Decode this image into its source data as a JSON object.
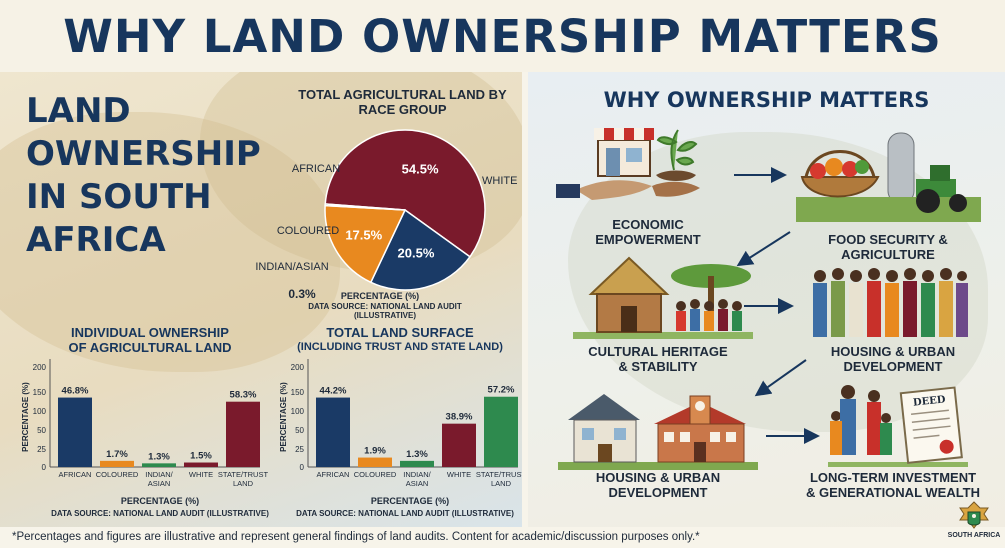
{
  "title": "WHY LAND OWNERSHIP MATTERS",
  "left_title": [
    "LAND",
    "OWNERSHIP",
    "IN SOUTH",
    "AFRICA"
  ],
  "pie": {
    "title": "TOTAL AGRICULTURAL LAND BY RACE GROUP",
    "xlabel": "PERCENTAGE (%)",
    "source": "DATA SOURCE: NATIONAL LAND AUDIT (ILLUSTRATIVE)",
    "slice_labels": [
      "WHITE",
      "AFRICAN",
      "COLOURED",
      "INDIAN/ASIAN"
    ],
    "value_labels": [
      "54.5%",
      "20.5%",
      "17.5%",
      "0.3%"
    ]
  },
  "chart_data": [
    {
      "type": "pie",
      "title": "TOTAL AGRICULTURAL LAND BY RACE GROUP",
      "categories": [
        "White",
        "African",
        "Coloured",
        "Indian/Asian"
      ],
      "values": [
        54.5,
        20.5,
        17.5,
        0.3
      ],
      "colors": [
        "#7a1a2c",
        "#1a3a66",
        "#e8891f",
        "#2e8a4e"
      ],
      "xlabel": "PERCENTAGE (%)"
    },
    {
      "type": "bar",
      "title": "INDIVIDUAL OWNERSHIP OF AGRICULTURAL LAND",
      "categories": [
        "AFRICAN",
        "COLOURED",
        "INDIAN/ ASIAN",
        "WHITE",
        "STATE/TRUST LAND"
      ],
      "values": [
        46.8,
        1.7,
        1.3,
        1.5,
        58.3
      ],
      "bar_heights": [
        168,
        10,
        4,
        6,
        158
      ],
      "value_labels": [
        "46.8%",
        "1.7%",
        "1.3%",
        "1.5%",
        "58.3%"
      ],
      "colors": [
        "#1a3a66",
        "#e8891f",
        "#2e8a4e",
        "#7a1a2c",
        "#7a1a2c"
      ],
      "ylabel": "PERCENTAGE (%)",
      "xlabel": "PERCENTAGE (%)",
      "yticks": [
        0,
        25,
        50,
        100,
        150,
        200
      ],
      "ylim": [
        0,
        200
      ],
      "source": "DATA SOURCE: NATIONAL LAND AUDIT (ILLUSTRATIVE)"
    },
    {
      "type": "bar",
      "title": "TOTAL LAND SURFACE (INCLUDING TRUST AND STATE LAND)",
      "categories": [
        "AFRICAN",
        "COLOURED",
        "INDIAN/ ASIAN",
        "WHITE",
        "STATE/TRUST LAND"
      ],
      "values": [
        44.2,
        1.9,
        1.3,
        38.9,
        57.2
      ],
      "bar_heights": [
        168,
        18,
        10,
        100,
        170
      ],
      "value_labels": [
        "44.2%",
        "1.9%",
        "1.3%",
        "38.9%",
        "57.2%"
      ],
      "colors": [
        "#1a3a66",
        "#e8891f",
        "#2e8a4e",
        "#7a1a2c",
        "#2e8a4e"
      ],
      "ylabel": "PERCENTAGE (%)",
      "xlabel": "PERCENTAGE (%)",
      "yticks": [
        0,
        25,
        50,
        100,
        150,
        200
      ],
      "ylim": [
        0,
        200
      ],
      "source": "DATA SOURCE: NATIONAL LAND AUDIT (ILLUSTRATIVE)"
    }
  ],
  "bar1": {
    "title_line1": "INDIVIDUAL OWNERSHIP",
    "title_line2": "OF AGRICULTURAL LAND",
    "xlabel": "PERCENTAGE (%)",
    "source": "DATA SOURCE: NATIONAL LAND AUDIT (ILLUSTRATIVE)"
  },
  "bar2": {
    "title_line1": "TOTAL LAND SURFACE",
    "title_line2": "(INCLUDING TRUST AND STATE LAND)",
    "xlabel": "PERCENTAGE (%)",
    "source": "DATA SOURCE: NATIONAL LAND AUDIT (ILLUSTRATIVE)"
  },
  "right": {
    "title": "WHY OWNERSHIP MATTERS",
    "items": [
      {
        "line1": "ECONOMIC",
        "line2": "EMPOWERMENT",
        "icon": "hand-shop-plant-icon"
      },
      {
        "line1": "FOOD SECURITY &",
        "line2": "AGRICULTURE",
        "icon": "farm-basket-tractor-icon"
      },
      {
        "line1": "CULTURAL HERITAGE",
        "line2": "& STABILITY",
        "icon": "hut-tree-people-icon"
      },
      {
        "line1": "HOUSING & URBAN",
        "line2": "DEVELOPMENT",
        "icon": "community-people-icon"
      },
      {
        "line1": "HOUSING & URBAN",
        "line2": "DEVELOPMENT",
        "icon": "house-school-icon"
      },
      {
        "line1": "LONG-TERM INVESTMENT",
        "line2": "& GENERATIONAL WEALTH",
        "icon": "family-deed-icon"
      }
    ],
    "deed_text": "DEED"
  },
  "footer": "*Percentages and figures are illustrative and represent general findings of land audits. Content for academic/discussion purposes only.*",
  "emblem_label": "SOUTH AFRICA"
}
